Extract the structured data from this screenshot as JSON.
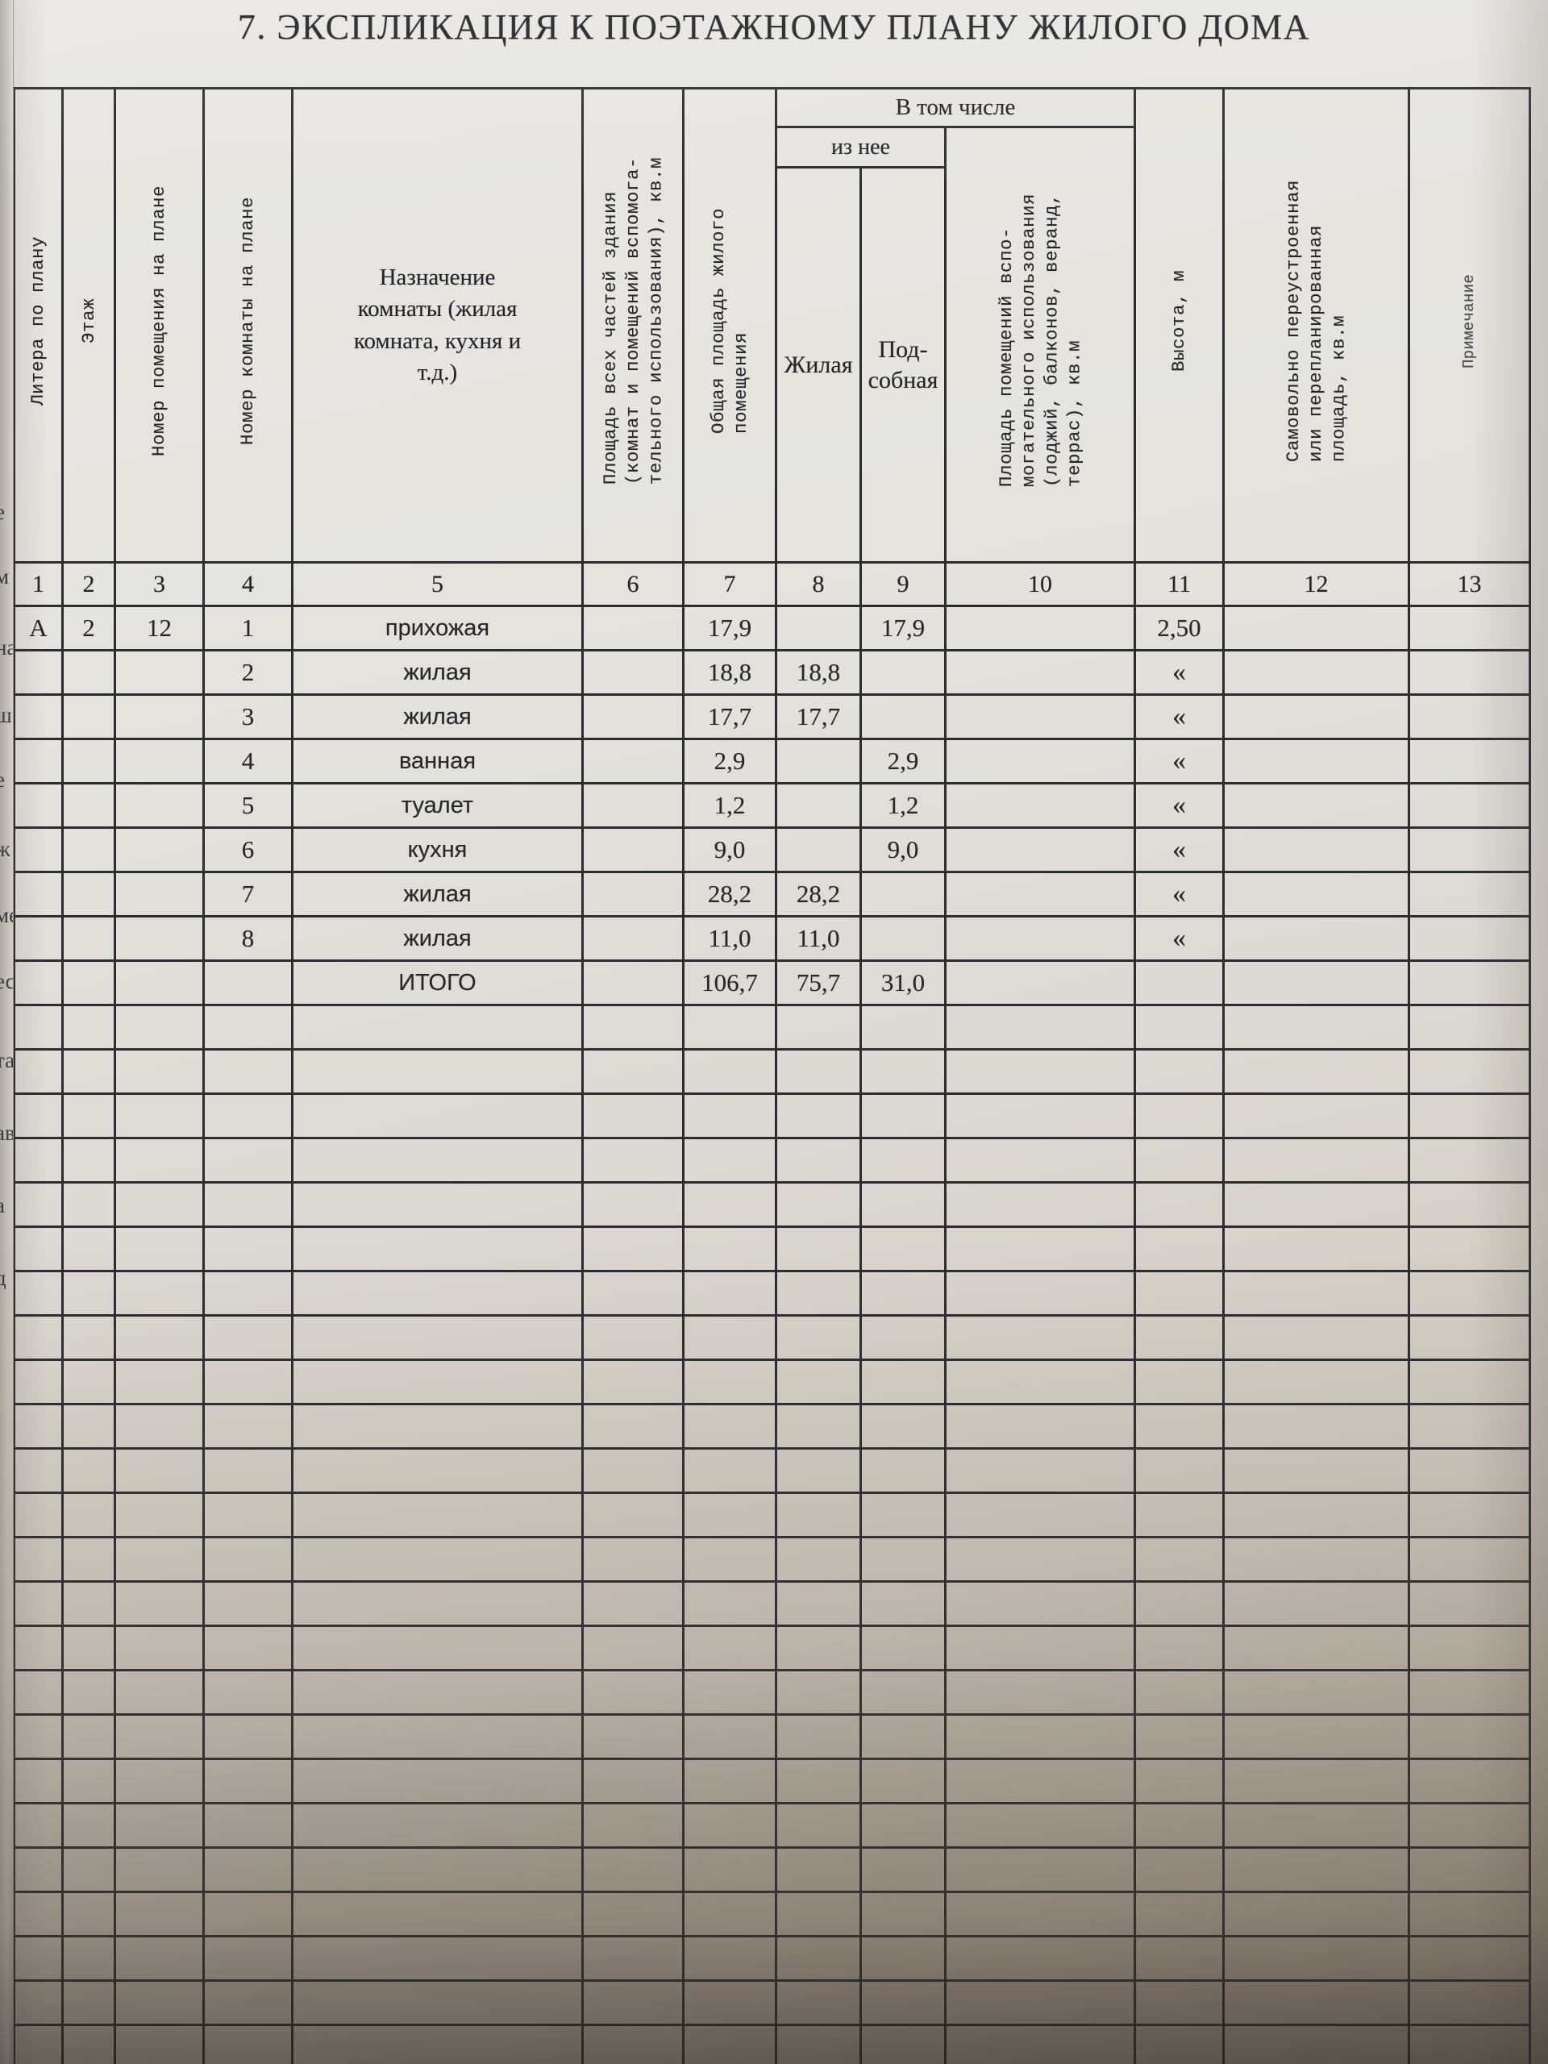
{
  "title": "7. ЭКСПЛИКАЦИЯ К ПОЭТАЖНОМУ ПЛАНУ ЖИЛОГО ДОМА",
  "table": {
    "group_headers": {
      "v_tom_chisle": "В том числе",
      "iz_nee": "из нее"
    },
    "columns": [
      {
        "num": "1",
        "label": "Литера по плану"
      },
      {
        "num": "2",
        "label": "Этаж"
      },
      {
        "num": "3",
        "label": "Номер помещения на плане"
      },
      {
        "num": "4",
        "label": "Номер комнаты на плане"
      },
      {
        "num": "5",
        "label": "Назначение\nкомнаты (жилая\nкомната, кухня и\nт.д.)"
      },
      {
        "num": "6",
        "label": "Площадь всех частей здания\n(комнат и помещений вспомога-\nтельного использования), кв.м"
      },
      {
        "num": "7",
        "label": "Общая площадь жилого\nпомещения"
      },
      {
        "num": "8",
        "label": "Жилая"
      },
      {
        "num": "9",
        "label": "Под-\nсобная"
      },
      {
        "num": "10",
        "label": "Площадь помещений вспо-\nмогательного использования\n(лоджий, балконов, веранд,\nтеррас), кв.м"
      },
      {
        "num": "11",
        "label": "Высота, м"
      },
      {
        "num": "12",
        "label": "Самовольно переустроенная\nили перепланированная\nплощадь, кв.м"
      },
      {
        "num": "13",
        "label": "Примечание"
      }
    ],
    "rows": [
      [
        "А",
        "2",
        "12",
        "1",
        "прихожая",
        "",
        "17,9",
        "",
        "17,9",
        "",
        "2,50",
        "",
        ""
      ],
      [
        "",
        "",
        "",
        "2",
        "жилая",
        "",
        "18,8",
        "18,8",
        "",
        "",
        "«",
        "",
        ""
      ],
      [
        "",
        "",
        "",
        "3",
        "жилая",
        "",
        "17,7",
        "17,7",
        "",
        "",
        "«",
        "",
        ""
      ],
      [
        "",
        "",
        "",
        "4",
        "ванная",
        "",
        "2,9",
        "",
        "2,9",
        "",
        "«",
        "",
        ""
      ],
      [
        "",
        "",
        "",
        "5",
        "туалет",
        "",
        "1,2",
        "",
        "1,2",
        "",
        "«",
        "",
        ""
      ],
      [
        "",
        "",
        "",
        "6",
        "кухня",
        "",
        "9,0",
        "",
        "9,0",
        "",
        "«",
        "",
        ""
      ],
      [
        "",
        "",
        "",
        "7",
        "жилая",
        "",
        "28,2",
        "28,2",
        "",
        "",
        "«",
        "",
        ""
      ],
      [
        "",
        "",
        "",
        "8",
        "жилая",
        "",
        "11,0",
        "11,0",
        "",
        "",
        "«",
        "",
        ""
      ],
      [
        "",
        "",
        "",
        "",
        "ИТОГО",
        "",
        "106,7",
        "75,7",
        "31,0",
        "",
        "",
        "",
        ""
      ]
    ],
    "totals_label": "ИТОГО",
    "empty_row_count": 24
  },
  "page_edge_letters": [
    "е",
    "м",
    "на",
    "ш",
    "е",
    "ж",
    "ме",
    "ес",
    "та",
    "ав",
    "а",
    "д"
  ]
}
